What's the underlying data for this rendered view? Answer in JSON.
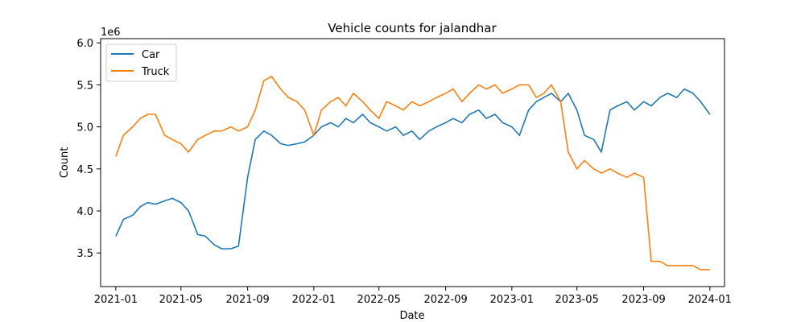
{
  "chart_data": {
    "type": "line",
    "title": "Vehicle counts for jalandhar",
    "xlabel": "Date",
    "ylabel": "Count",
    "y_multiplier_label": "1e6",
    "xlim": [
      "2020-12-04",
      "2024-01-28"
    ],
    "ylim": [
      3.1,
      6.05
    ],
    "x_ticks": [
      "2021-01-01",
      "2021-05-01",
      "2021-09-01",
      "2022-01-01",
      "2022-05-01",
      "2022-09-01",
      "2023-01-01",
      "2023-05-01",
      "2023-09-01",
      "2024-01-01"
    ],
    "x_tick_labels": [
      "2021-01",
      "2021-05",
      "2021-09",
      "2022-01",
      "2022-05",
      "2022-09",
      "2023-01",
      "2023-05",
      "2023-09",
      "2024-01"
    ],
    "y_ticks": [
      3.5,
      4.0,
      4.5,
      5.0,
      5.5,
      6.0
    ],
    "y_tick_labels": [
      "3.5",
      "4.0",
      "4.5",
      "5.0",
      "5.5",
      "6.0"
    ],
    "grid": false,
    "legend_position": "top-left",
    "series": [
      {
        "name": "Car",
        "color": "#1f77b4",
        "x": [
          "2021-01-01",
          "2021-01-15",
          "2021-02-01",
          "2021-02-15",
          "2021-03-01",
          "2021-03-15",
          "2021-04-01",
          "2021-04-15",
          "2021-05-01",
          "2021-05-15",
          "2021-06-01",
          "2021-06-15",
          "2021-07-01",
          "2021-07-15",
          "2021-08-01",
          "2021-08-15",
          "2021-09-01",
          "2021-09-15",
          "2021-10-01",
          "2021-10-15",
          "2021-11-01",
          "2021-11-15",
          "2021-12-01",
          "2021-12-15",
          "2022-01-01",
          "2022-01-15",
          "2022-02-01",
          "2022-02-15",
          "2022-03-01",
          "2022-03-15",
          "2022-04-01",
          "2022-04-15",
          "2022-05-01",
          "2022-05-15",
          "2022-06-01",
          "2022-06-15",
          "2022-07-01",
          "2022-07-15",
          "2022-08-01",
          "2022-08-15",
          "2022-09-01",
          "2022-09-15",
          "2022-10-01",
          "2022-10-15",
          "2022-11-01",
          "2022-11-15",
          "2022-12-01",
          "2022-12-15",
          "2023-01-01",
          "2023-01-15",
          "2023-02-01",
          "2023-02-15",
          "2023-03-01",
          "2023-03-15",
          "2023-04-01",
          "2023-04-15",
          "2023-05-01",
          "2023-05-15",
          "2023-06-01",
          "2023-06-15",
          "2023-07-01",
          "2023-07-15",
          "2023-08-01",
          "2023-08-15",
          "2023-09-01",
          "2023-09-15",
          "2023-10-01",
          "2023-10-15",
          "2023-11-01",
          "2023-11-15",
          "2023-12-01",
          "2023-12-15",
          "2024-01-01"
        ],
        "values": [
          3.7,
          3.9,
          3.95,
          4.05,
          4.1,
          4.08,
          4.12,
          4.15,
          4.1,
          4.0,
          3.72,
          3.7,
          3.6,
          3.55,
          3.55,
          3.58,
          4.4,
          4.85,
          4.95,
          4.9,
          4.8,
          4.78,
          4.8,
          4.82,
          4.9,
          5.0,
          5.05,
          5.0,
          5.1,
          5.05,
          5.15,
          5.05,
          5.0,
          4.95,
          5.0,
          4.9,
          4.95,
          4.85,
          4.95,
          5.0,
          5.05,
          5.1,
          5.05,
          5.15,
          5.2,
          5.1,
          5.15,
          5.05,
          5.0,
          4.9,
          5.2,
          5.3,
          5.35,
          5.4,
          5.3,
          5.4,
          5.2,
          4.9,
          4.85,
          4.7,
          5.2,
          5.25,
          5.3,
          5.2,
          5.3,
          5.25,
          5.35,
          5.4,
          5.35,
          5.45,
          5.4,
          5.3,
          5.15
        ]
      },
      {
        "name": "Truck",
        "color": "#ff7f0e",
        "x": [
          "2021-01-01",
          "2021-01-15",
          "2021-02-01",
          "2021-02-15",
          "2021-03-01",
          "2021-03-15",
          "2021-04-01",
          "2021-04-15",
          "2021-05-01",
          "2021-05-15",
          "2021-06-01",
          "2021-06-15",
          "2021-07-01",
          "2021-07-15",
          "2021-08-01",
          "2021-08-15",
          "2021-09-01",
          "2021-09-15",
          "2021-10-01",
          "2021-10-15",
          "2021-11-01",
          "2021-11-15",
          "2021-12-01",
          "2021-12-15",
          "2022-01-01",
          "2022-01-15",
          "2022-02-01",
          "2022-02-15",
          "2022-03-01",
          "2022-03-15",
          "2022-04-01",
          "2022-04-15",
          "2022-05-01",
          "2022-05-15",
          "2022-06-01",
          "2022-06-15",
          "2022-07-01",
          "2022-07-15",
          "2022-08-01",
          "2022-08-15",
          "2022-09-01",
          "2022-09-15",
          "2022-10-01",
          "2022-10-15",
          "2022-11-01",
          "2022-11-15",
          "2022-12-01",
          "2022-12-15",
          "2023-01-01",
          "2023-01-15",
          "2023-02-01",
          "2023-02-15",
          "2023-03-01",
          "2023-03-15",
          "2023-04-01",
          "2023-04-15",
          "2023-05-01",
          "2023-05-15",
          "2023-06-01",
          "2023-06-15",
          "2023-07-01",
          "2023-07-15",
          "2023-08-01",
          "2023-08-15",
          "2023-09-01",
          "2023-09-15",
          "2023-10-01",
          "2023-10-15",
          "2023-11-01",
          "2023-11-15",
          "2023-12-01",
          "2023-12-15",
          "2024-01-01"
        ],
        "values": [
          4.65,
          4.9,
          5.0,
          5.1,
          5.15,
          5.15,
          4.9,
          4.85,
          4.8,
          4.7,
          4.85,
          4.9,
          4.95,
          4.95,
          5.0,
          4.95,
          5.0,
          5.2,
          5.55,
          5.6,
          5.45,
          5.35,
          5.3,
          5.2,
          4.9,
          5.2,
          5.3,
          5.35,
          5.25,
          5.4,
          5.3,
          5.2,
          5.1,
          5.3,
          5.25,
          5.2,
          5.3,
          5.25,
          5.3,
          5.35,
          5.4,
          5.45,
          5.3,
          5.4,
          5.5,
          5.45,
          5.5,
          5.4,
          5.45,
          5.5,
          5.5,
          5.35,
          5.4,
          5.5,
          5.3,
          4.7,
          4.5,
          4.6,
          4.5,
          4.45,
          4.5,
          4.45,
          4.4,
          4.45,
          4.4,
          3.4,
          3.4,
          3.35,
          3.35,
          3.35,
          3.35,
          3.3,
          3.3
        ]
      }
    ]
  }
}
